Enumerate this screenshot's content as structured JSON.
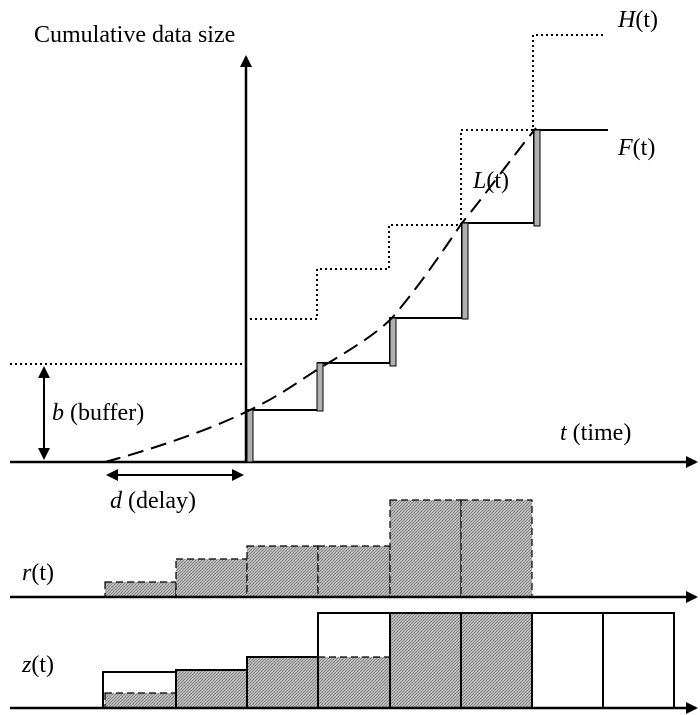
{
  "labels": {
    "y_axis": "Cumulative data size",
    "H_sym": "H",
    "H_arg": "(t)",
    "F_sym": "F",
    "F_arg": "(t)",
    "L_sym": "L",
    "L_arg": "(t)",
    "t_sym": "t",
    "t_txt": " (time)",
    "b_sym": "b",
    "b_txt": " (buffer)",
    "d_sym": "d",
    "d_txt": " (delay)",
    "r_sym": "r",
    "r_arg": "(t)",
    "z_sym": "z",
    "z_arg": "(t)"
  },
  "colors": {
    "ink": "#000000",
    "fill_gray": "#b0b0b0"
  }
}
